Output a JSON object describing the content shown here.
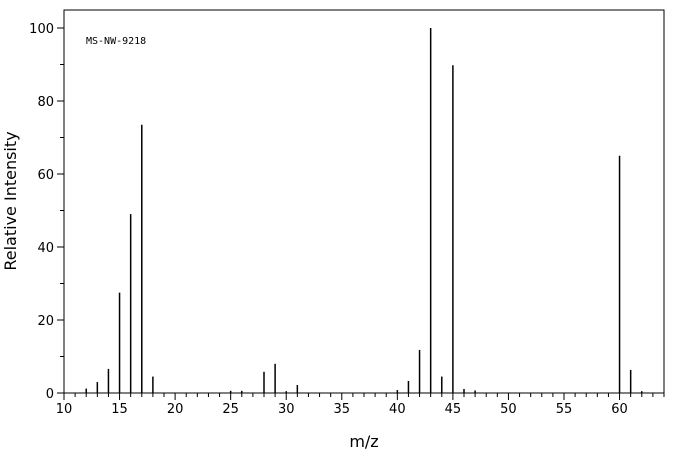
{
  "chart_data": {
    "type": "bar",
    "annotation": "MS-NW-9218",
    "xlabel": "m/z",
    "ylabel": "Relative Intensity",
    "xlim": [
      10,
      64
    ],
    "ylim": [
      0,
      100
    ],
    "x_major_ticks": [
      10,
      15,
      20,
      25,
      30,
      35,
      40,
      45,
      50,
      55,
      60
    ],
    "y_major_ticks": [
      0,
      20,
      40,
      60,
      80,
      100
    ],
    "x_tick_labels": [
      "10",
      "15",
      "20",
      "25",
      "30",
      "35",
      "40",
      "45",
      "50",
      "55",
      "60"
    ],
    "y_tick_labels": [
      "0",
      "20",
      "40",
      "60",
      "80",
      "100"
    ],
    "grid": false,
    "peaks": [
      {
        "mz": 12,
        "intensity": 1.2
      },
      {
        "mz": 13,
        "intensity": 3.0
      },
      {
        "mz": 14,
        "intensity": 6.6
      },
      {
        "mz": 15,
        "intensity": 27.5
      },
      {
        "mz": 16,
        "intensity": 49.0
      },
      {
        "mz": 17,
        "intensity": 73.5
      },
      {
        "mz": 18,
        "intensity": 4.5
      },
      {
        "mz": 25,
        "intensity": 0.6
      },
      {
        "mz": 26,
        "intensity": 0.6
      },
      {
        "mz": 28,
        "intensity": 5.8
      },
      {
        "mz": 29,
        "intensity": 8.0
      },
      {
        "mz": 30,
        "intensity": 0.5
      },
      {
        "mz": 31,
        "intensity": 2.2
      },
      {
        "mz": 40,
        "intensity": 0.8
      },
      {
        "mz": 41,
        "intensity": 3.3
      },
      {
        "mz": 42,
        "intensity": 11.8
      },
      {
        "mz": 43,
        "intensity": 100.0
      },
      {
        "mz": 44,
        "intensity": 4.5
      },
      {
        "mz": 45,
        "intensity": 89.8
      },
      {
        "mz": 46,
        "intensity": 1.1
      },
      {
        "mz": 47,
        "intensity": 0.7
      },
      {
        "mz": 60,
        "intensity": 65.0
      },
      {
        "mz": 61,
        "intensity": 6.3
      },
      {
        "mz": 62,
        "intensity": 0.5
      }
    ]
  }
}
